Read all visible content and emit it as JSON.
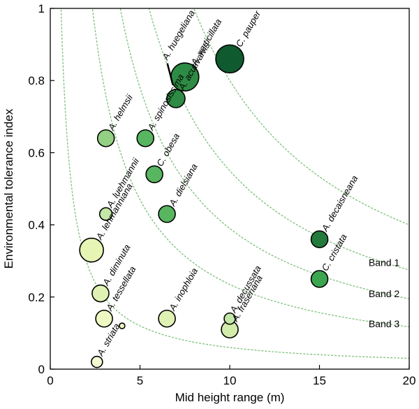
{
  "chart_data": {
    "type": "scatter",
    "xlabel": "Mid height range (m)",
    "ylabel": "Environmental tolerance index",
    "xlim": [
      0,
      20
    ],
    "ylim": [
      0,
      1
    ],
    "x_ticks": [
      0,
      5,
      10,
      15,
      20
    ],
    "x_tick_labels": [
      "0",
      "5",
      "10",
      "15",
      "20"
    ],
    "y_ticks": [
      0,
      0.2,
      0.4,
      0.6,
      0.8,
      1
    ],
    "y_tick_labels": [
      "0",
      "0.2",
      "0.4",
      "0.6",
      "0.8",
      "1"
    ],
    "grid": false,
    "bubble_size_note": "bubble area scales with a third variable (unlabelled)",
    "bands": [
      {
        "label": "Band 1",
        "k": 5.5,
        "color": "#7cc07c"
      },
      {
        "label": "Band 2",
        "k": 3.9,
        "color": "#7cc07c"
      },
      {
        "label": "Band 3",
        "k": 2.35,
        "color": "#7cc07c"
      }
    ],
    "boundary_curves": [
      {
        "k": 8.0
      },
      {
        "k": 5.5
      },
      {
        "k": 3.9
      },
      {
        "k": 2.35
      },
      {
        "k": 0.6
      }
    ],
    "points": [
      {
        "label": "C. pauper",
        "x": 10.0,
        "y": 0.86,
        "size": 20,
        "color": "#0f5a2e"
      },
      {
        "label": "A. verticillata",
        "x": 7.5,
        "y": 0.81,
        "size": 20,
        "color": "#2e8b45"
      },
      {
        "label": "A. huegeliana",
        "x": 6.6,
        "y": 0.81,
        "size": 0,
        "color": "#2e8b45"
      },
      {
        "label": "A. acutivalvis",
        "x": 7.0,
        "y": 0.75,
        "size": 13,
        "color": "#2e8b45"
      },
      {
        "label": "A. helmsii",
        "x": 3.1,
        "y": 0.64,
        "size": 12,
        "color": "#93d083"
      },
      {
        "label": "A. spinosissima",
        "x": 5.3,
        "y": 0.64,
        "size": 12,
        "color": "#58b560"
      },
      {
        "label": "C. obesa",
        "x": 5.8,
        "y": 0.54,
        "size": 12,
        "color": "#58b560"
      },
      {
        "label": "A. luehmannii",
        "x": 3.1,
        "y": 0.43,
        "size": 9,
        "color": "#c4e6a6"
      },
      {
        "label": "A. dielsiana",
        "x": 6.5,
        "y": 0.43,
        "size": 12,
        "color": "#58b560"
      },
      {
        "label": "A. lehmanniana",
        "x": 2.3,
        "y": 0.33,
        "size": 17,
        "color": "#e6f5b4"
      },
      {
        "label": "A. decaisneana",
        "x": 15.0,
        "y": 0.36,
        "size": 12,
        "color": "#237a3c"
      },
      {
        "label": "C. cristata",
        "x": 15.0,
        "y": 0.25,
        "size": 12,
        "color": "#3ca550"
      },
      {
        "label": "A. diminuta",
        "x": 2.8,
        "y": 0.21,
        "size": 12,
        "color": "#dff2b4"
      },
      {
        "label": "A. tessellata",
        "x": 3.0,
        "y": 0.14,
        "size": 12,
        "color": "#edf8c2"
      },
      {
        "label": "A. inophloia",
        "x": 6.5,
        "y": 0.14,
        "size": 12,
        "color": "#dff2b4"
      },
      {
        "label": "A. decussata",
        "x": 10.0,
        "y": 0.14,
        "size": 8,
        "color": "#c4e6a6"
      },
      {
        "label": "A. fraseriana",
        "x": 10.0,
        "y": 0.11,
        "size": 12,
        "color": "#d2ecaa"
      },
      {
        "label": "A. striata",
        "x": 2.6,
        "y": 0.02,
        "size": 8,
        "color": "#f4fad2"
      },
      {
        "label": "",
        "x": 4.0,
        "y": 0.12,
        "size": 4,
        "color": "#edf8c2"
      }
    ]
  }
}
